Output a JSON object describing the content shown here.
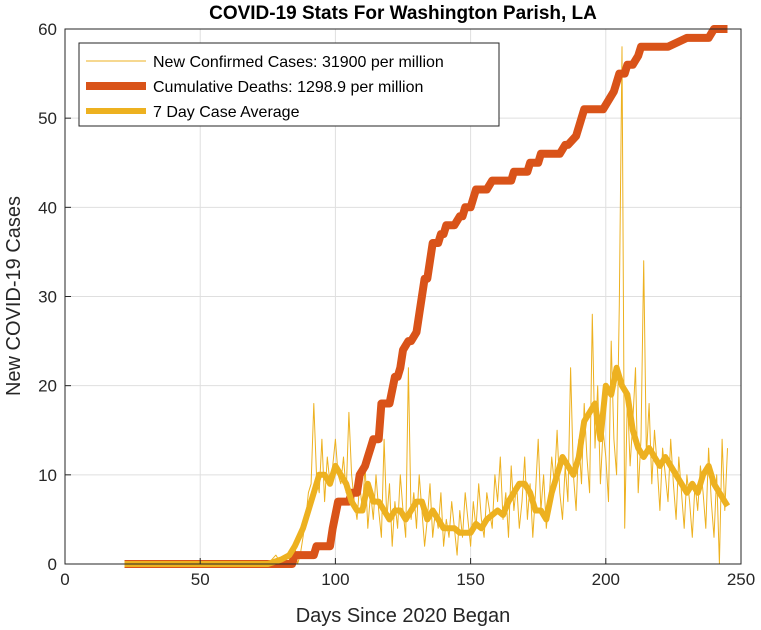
{
  "chart_data": {
    "type": "line",
    "title": "COVID-19 Stats For Washington Parish, LA",
    "xlabel": "Days Since 2020 Began",
    "ylabel": "New COVID-19 Cases",
    "xlim": [
      0,
      250
    ],
    "ylim": [
      0,
      60
    ],
    "xticks": [
      "0",
      "50",
      "100",
      "150",
      "200",
      "250"
    ],
    "yticks": [
      "0",
      "10",
      "20",
      "30",
      "40",
      "50",
      "60"
    ],
    "grid": true,
    "legend_position": "top-left",
    "series": [
      {
        "name": "New Confirmed Cases: 31900 per million",
        "color": "#EDB120",
        "x": [
          22,
          40,
          60,
          75,
          78,
          80,
          82,
          84,
          85,
          86,
          87,
          88,
          89,
          90,
          91,
          92,
          93,
          94,
          95,
          96,
          97,
          98,
          99,
          100,
          101,
          102,
          103,
          104,
          105,
          106,
          107,
          108,
          109,
          110,
          111,
          112,
          113,
          114,
          115,
          116,
          117,
          118,
          119,
          120,
          121,
          122,
          123,
          124,
          125,
          126,
          127,
          128,
          129,
          130,
          131,
          132,
          133,
          134,
          135,
          136,
          137,
          138,
          139,
          140,
          141,
          142,
          143,
          144,
          145,
          146,
          147,
          148,
          149,
          150,
          151,
          152,
          153,
          154,
          155,
          156,
          157,
          158,
          159,
          160,
          161,
          162,
          163,
          164,
          165,
          166,
          167,
          168,
          169,
          170,
          171,
          172,
          173,
          174,
          175,
          176,
          177,
          178,
          179,
          180,
          181,
          182,
          183,
          184,
          185,
          186,
          187,
          188,
          189,
          190,
          191,
          192,
          193,
          194,
          195,
          196,
          197,
          198,
          199,
          200,
          201,
          202,
          203,
          204,
          205,
          206,
          207,
          208,
          209,
          210,
          211,
          212,
          213,
          214,
          215,
          216,
          217,
          218,
          219,
          220,
          221,
          222,
          223,
          224,
          225,
          226,
          227,
          228,
          229,
          230,
          231,
          232,
          233,
          234,
          235,
          236,
          237,
          238,
          239,
          240,
          241,
          242,
          243,
          244,
          245
        ],
        "y": [
          0,
          0,
          0,
          0,
          1,
          0,
          1,
          0,
          2,
          0,
          1,
          3,
          5,
          8,
          9,
          18,
          10,
          8,
          14,
          7,
          12,
          9,
          11,
          14,
          10,
          9,
          12,
          8,
          17,
          10,
          7,
          5,
          9,
          6,
          11,
          4,
          8,
          5,
          10,
          6,
          3,
          14,
          5,
          9,
          2,
          7,
          4,
          10,
          6,
          3,
          22,
          5,
          8,
          4,
          10,
          6,
          2,
          5,
          9,
          3,
          6,
          4,
          8,
          2,
          5,
          3,
          7,
          4,
          1,
          6,
          3,
          8,
          5,
          2,
          7,
          4,
          9,
          5,
          3,
          8,
          6,
          4,
          10,
          7,
          12,
          5,
          8,
          3,
          11,
          6,
          9,
          4,
          7,
          12,
          5,
          9,
          3,
          8,
          14,
          6,
          10,
          4,
          7,
          12,
          9,
          15,
          8,
          5,
          11,
          7,
          22,
          10,
          6,
          14,
          9,
          18,
          12,
          8,
          28,
          13,
          20,
          9,
          15,
          12,
          7,
          25,
          14,
          10,
          29,
          58,
          4,
          19,
          11,
          16,
          22,
          8,
          14,
          34,
          12,
          18,
          9,
          15,
          11,
          6,
          13,
          10,
          7,
          14,
          9,
          5,
          12,
          8,
          4,
          10,
          7,
          3,
          9,
          6,
          11,
          8,
          4,
          13,
          7,
          3,
          10,
          0,
          14,
          6,
          13
        ],
        "line_width": 1
      },
      {
        "name": "Cumulative Deaths: 1298.9 per million",
        "color": "#D95319",
        "x": [
          22,
          84,
          85,
          88,
          89,
          92,
          93,
          98,
          99,
          101,
          102,
          105,
          106,
          108,
          109,
          111,
          112,
          113,
          114,
          116,
          117,
          118,
          119,
          120,
          122,
          123,
          124,
          125,
          127,
          128,
          130,
          131,
          132,
          133,
          134,
          135,
          136,
          137,
          138,
          139,
          140,
          141,
          142,
          143,
          144,
          146,
          147,
          148,
          150,
          151,
          152,
          155,
          156,
          158,
          160,
          161,
          163,
          165,
          166,
          168,
          171,
          172,
          175,
          176,
          177,
          178,
          180,
          182,
          183,
          185,
          186,
          189,
          190,
          191,
          192,
          195,
          196,
          198,
          199,
          203,
          204,
          205,
          206,
          207,
          208,
          209,
          210,
          212,
          213,
          220,
          222,
          223,
          230,
          231,
          237,
          238,
          240,
          241,
          245
        ],
        "y": [
          0,
          0,
          1,
          1,
          1,
          1,
          2,
          2,
          4,
          7,
          7,
          7,
          8,
          8,
          10,
          11,
          12,
          13,
          14,
          14,
          18,
          18,
          18,
          18,
          21,
          21,
          22,
          24,
          25,
          25,
          26,
          28,
          30,
          32,
          32,
          34,
          36,
          36,
          36,
          37,
          37,
          38,
          38,
          38,
          38,
          39,
          39,
          40,
          40,
          41,
          42,
          42,
          42,
          43,
          43,
          43,
          43,
          43,
          44,
          44,
          44,
          45,
          45,
          46,
          46,
          46,
          46,
          46,
          46,
          47,
          47,
          48,
          49,
          50,
          51,
          51,
          51,
          51,
          51,
          53,
          54,
          55,
          55,
          55,
          56,
          56,
          56,
          57,
          58,
          58,
          58,
          58,
          59,
          59,
          59,
          59,
          60,
          60,
          60
        ],
        "line_width": 8
      },
      {
        "name": "7 Day Case Average",
        "color": "#EDB120",
        "x": [
          22,
          50,
          75,
          80,
          83,
          85,
          88,
          90,
          92,
          94,
          96,
          98,
          100,
          102,
          104,
          106,
          108,
          110,
          112,
          114,
          116,
          118,
          120,
          122,
          124,
          126,
          128,
          130,
          132,
          134,
          136,
          138,
          140,
          142,
          144,
          146,
          148,
          150,
          152,
          154,
          156,
          158,
          160,
          162,
          164,
          166,
          168,
          170,
          172,
          174,
          176,
          178,
          180,
          182,
          184,
          186,
          188,
          190,
          192,
          194,
          196,
          198,
          200,
          202,
          204,
          206,
          208,
          210,
          212,
          214,
          216,
          218,
          220,
          222,
          224,
          226,
          228,
          230,
          232,
          234,
          236,
          238,
          240,
          242,
          244,
          245
        ],
        "y": [
          0,
          0,
          0,
          0.5,
          1,
          2,
          4,
          6,
          8,
          10,
          10,
          9,
          11,
          10,
          9,
          7,
          6,
          6,
          9,
          7,
          7,
          6,
          5,
          6,
          6,
          5,
          6,
          7,
          7,
          5,
          6,
          5,
          4,
          4,
          4,
          3.5,
          3.5,
          3.5,
          4.5,
          4,
          5,
          5.5,
          6,
          5.5,
          7,
          8,
          9,
          9,
          8,
          6,
          6,
          5,
          8,
          10,
          12,
          11,
          10,
          12,
          16,
          17,
          18,
          14,
          20,
          19,
          22,
          20,
          19,
          15,
          13,
          12,
          13,
          12,
          11,
          12,
          11,
          10,
          9,
          8,
          9,
          8,
          10,
          11,
          9,
          8,
          7,
          6.5
        ],
        "line_width": 6
      }
    ]
  }
}
